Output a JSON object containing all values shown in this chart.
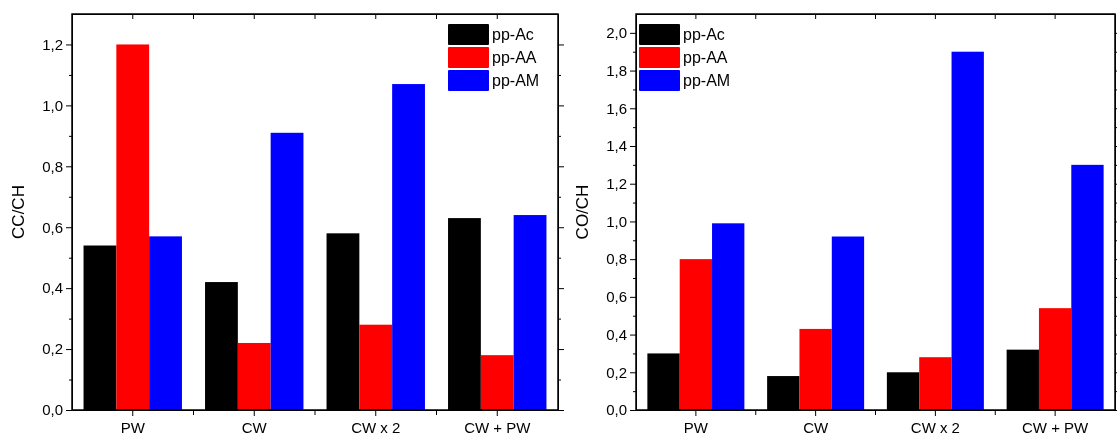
{
  "chart_data": [
    {
      "type": "bar",
      "ylabel": "CC/CH",
      "categories": [
        "PW",
        "CW",
        "CW x 2",
        "CW + PW"
      ],
      "legend": "top right",
      "ylim": [
        0,
        1.3
      ],
      "yticks": [
        {
          "value": 0,
          "label": "0,0"
        },
        {
          "value": 0.1,
          "label": null
        },
        {
          "value": 0.2,
          "label": "0,2"
        },
        {
          "value": 0.3,
          "label": null
        },
        {
          "value": 0.4,
          "label": "0,4"
        },
        {
          "value": 0.5,
          "label": null
        },
        {
          "value": 0.6,
          "label": "0,6"
        },
        {
          "value": 0.7,
          "label": null
        },
        {
          "value": 0.8,
          "label": "0,8"
        },
        {
          "value": 0.9,
          "label": null
        },
        {
          "value": 1.0,
          "label": "1,0"
        },
        {
          "value": 1.1,
          "label": null
        },
        {
          "value": 1.2,
          "label": "1,2"
        }
      ],
      "series": [
        {
          "name": "pp-Ac",
          "color": "#000000",
          "values": [
            0.54,
            0.42,
            0.58,
            0.63
          ]
        },
        {
          "name": "pp-AA",
          "color": "#ff0000",
          "values": [
            1.2,
            0.22,
            0.28,
            0.18
          ]
        },
        {
          "name": "pp-AM",
          "color": "#0000ff",
          "values": [
            0.57,
            0.91,
            1.07,
            0.64
          ]
        }
      ]
    },
    {
      "type": "bar",
      "ylabel": "CO/CH",
      "categories": [
        "PW",
        "CW",
        "CW x 2",
        "CW + PW"
      ],
      "legend": "top left",
      "ylim": [
        0,
        2.1
      ],
      "yticks": [
        {
          "value": 0,
          "label": "0,0"
        },
        {
          "value": 0.1,
          "label": null
        },
        {
          "value": 0.2,
          "label": "0,2"
        },
        {
          "value": 0.3,
          "label": null
        },
        {
          "value": 0.4,
          "label": "0,4"
        },
        {
          "value": 0.5,
          "label": null
        },
        {
          "value": 0.6,
          "label": "0,6"
        },
        {
          "value": 0.7,
          "label": null
        },
        {
          "value": 0.8,
          "label": "0,8"
        },
        {
          "value": 0.9,
          "label": null
        },
        {
          "value": 1.0,
          "label": "1,0"
        },
        {
          "value": 1.1,
          "label": null
        },
        {
          "value": 1.2,
          "label": "1,2"
        },
        {
          "value": 1.3,
          "label": null
        },
        {
          "value": 1.4,
          "label": "1,4"
        },
        {
          "value": 1.5,
          "label": null
        },
        {
          "value": 1.6,
          "label": "1,6"
        },
        {
          "value": 1.7,
          "label": null
        },
        {
          "value": 1.8,
          "label": "1,8"
        },
        {
          "value": 1.9,
          "label": null
        },
        {
          "value": 2.0,
          "label": "2,0"
        }
      ],
      "series": [
        {
          "name": "pp-Ac",
          "color": "#000000",
          "values": [
            0.3,
            0.18,
            0.2,
            0.32
          ]
        },
        {
          "name": "pp-AA",
          "color": "#ff0000",
          "values": [
            0.8,
            0.43,
            0.28,
            0.54
          ]
        },
        {
          "name": "pp-AM",
          "color": "#0000ff",
          "values": [
            0.99,
            0.92,
            1.9,
            1.3
          ]
        }
      ]
    }
  ]
}
